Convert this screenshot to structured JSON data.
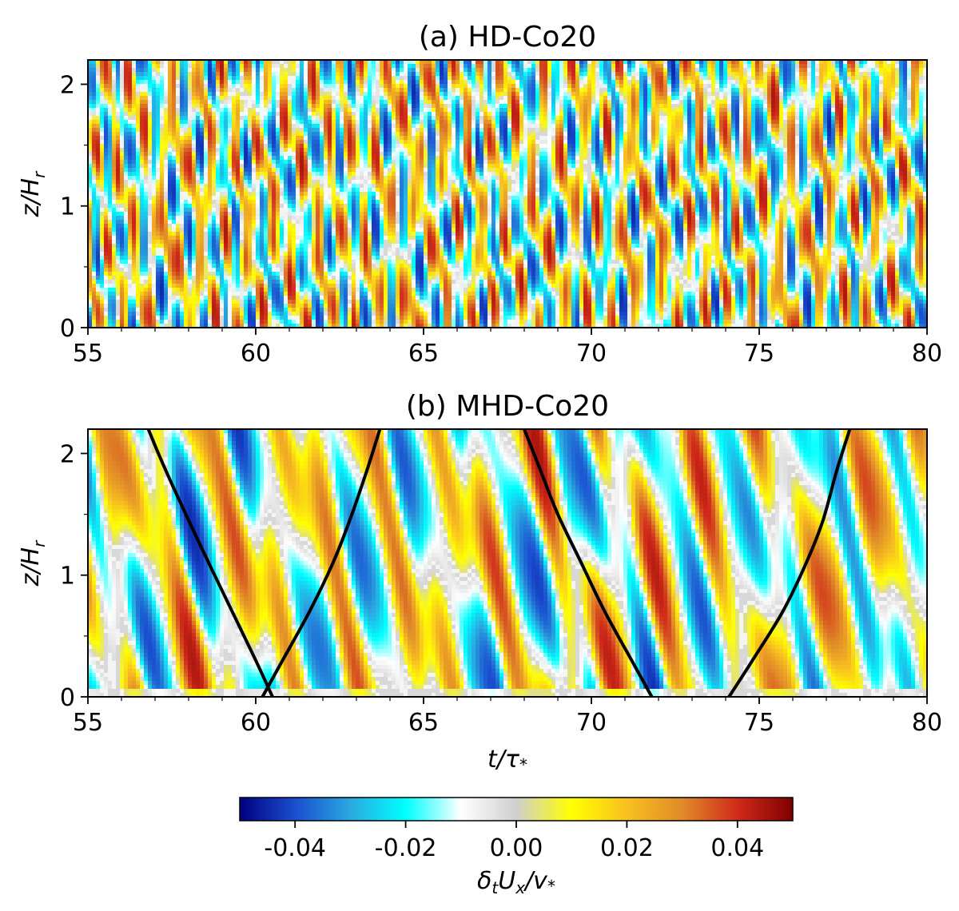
{
  "chart_data": [
    {
      "type": "heatmap",
      "title": "(a) HD-Co20",
      "xlabel": "",
      "ylabel": "z/H_r",
      "xlim": [
        55,
        80
      ],
      "ylim": [
        0,
        2.2
      ],
      "xticks": [
        "55",
        "60",
        "65",
        "70",
        "75",
        "80"
      ],
      "yticks": [
        "0",
        "1",
        "2"
      ],
      "pattern": "small-scale incoherent fluctuations",
      "color_range": [
        -0.05,
        0.05
      ]
    },
    {
      "type": "heatmap",
      "title": "(b) MHD-Co20",
      "xlabel": "t/τ*",
      "ylabel": "z/H_r",
      "xlim": [
        55,
        80
      ],
      "ylim": [
        0,
        2.2
      ],
      "xticks": [
        "55",
        "60",
        "65",
        "70",
        "75",
        "80"
      ],
      "yticks": [
        "0",
        "1",
        "2"
      ],
      "pattern": "large-scale diagonal wave packets",
      "color_range": [
        -0.05,
        0.05
      ],
      "curves": [
        {
          "name": "left-arc-1",
          "t": [
            60.5,
            60.0,
            59.3,
            58.6,
            58.0,
            57.5,
            57.1,
            56.8
          ],
          "z": [
            0.0,
            0.3,
            0.7,
            1.1,
            1.45,
            1.75,
            2.0,
            2.2
          ]
        },
        {
          "name": "right-arc-1",
          "t": [
            60.2,
            60.8,
            61.6,
            62.3,
            62.8,
            63.3,
            63.7
          ],
          "z": [
            0.0,
            0.3,
            0.7,
            1.1,
            1.45,
            1.85,
            2.2
          ]
        },
        {
          "name": "left-arc-2",
          "t": [
            71.8,
            71.2,
            70.4,
            69.7,
            69.0,
            68.5,
            68.0
          ],
          "z": [
            0.0,
            0.3,
            0.7,
            1.1,
            1.5,
            1.85,
            2.2
          ]
        },
        {
          "name": "right-arc-2",
          "t": [
            74.1,
            74.8,
            75.7,
            76.4,
            76.9,
            77.3,
            77.7
          ],
          "z": [
            0.0,
            0.3,
            0.7,
            1.1,
            1.45,
            1.85,
            2.2
          ]
        }
      ]
    }
  ],
  "colorbar": {
    "label": "δ_t U_x / v*",
    "range": [
      -0.05,
      0.05
    ],
    "ticks": [
      "-0.04",
      "-0.02",
      "0.00",
      "0.02",
      "0.04"
    ],
    "tick_values": [
      -0.04,
      -0.02,
      0.0,
      0.02,
      0.04
    ],
    "colors": [
      "#00007f",
      "#1a4fd0",
      "#2aa8e0",
      "#00ffff",
      "#ffffff",
      "#cfcfcf",
      "#ffff00",
      "#f8c020",
      "#e08a28",
      "#d02a1a",
      "#7f0000"
    ]
  },
  "labels": {
    "title_a": "(a) HD-Co20",
    "title_b": "(b) MHD-Co20",
    "ylabel_main": "z/H",
    "ylabel_sub": "r",
    "xlabel_main": "t/τ",
    "xlabel_sub": "*",
    "cbar_d": "δ",
    "cbar_t": "t",
    "cbar_u": "U",
    "cbar_x": "x",
    "cbar_v": "/v",
    "cbar_star": "*"
  }
}
